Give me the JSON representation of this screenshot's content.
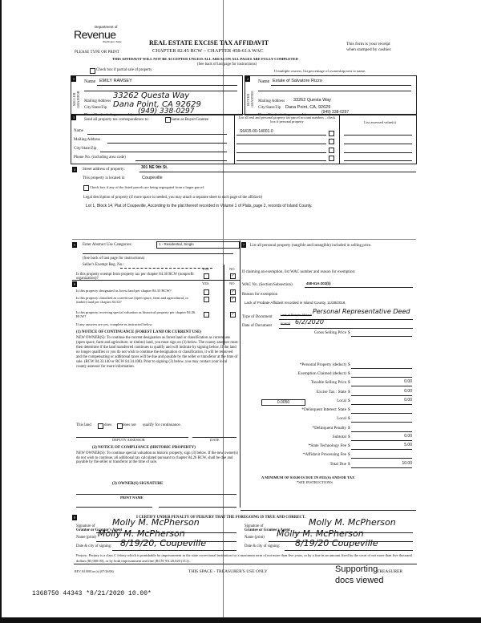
{
  "header": {
    "logo_top": "Department of",
    "logo_main": "Revenue",
    "logo_sub": "Washington State",
    "type_note": "PLEASE TYPE OR PRINT",
    "title": "REAL ESTATE EXCISE TAX AFFIDAVIT",
    "chapter": "CHAPTER 82.45 RCW – CHAPTER 458-61A WAC",
    "receipt_line1": "This form is your receipt",
    "receipt_line2": "when stamped by cashier.",
    "warning": "THIS AFFIDAVIT WILL NOT BE ACCEPTED UNLESS ALL AREAS ON ALL PAGES ARE FULLY COMPLETED",
    "see_back": "(See back of last page for instructions)",
    "partial_sale": "Check box if partial sale of property",
    "multiple_owners": "If multiple owners, list percentage of ownership next to name."
  },
  "seller": {
    "section": "1",
    "side_label": "SELLER GRANTOR",
    "name_label": "Name",
    "name": "EMILY RAMSEY",
    "address_label": "Mailing Address",
    "address": "33262 Questa Way",
    "city_label": "City/State/Zip",
    "city": "Dana Point, CA 92629",
    "phone_label": "Phone No. (including area code)",
    "phone": "(949) 338-0297"
  },
  "buyer": {
    "section": "2",
    "side_label": "BUYER GRANTEE",
    "name_label": "Name",
    "name": "Estate of Salvatore Rizzo",
    "address_label": "Mailing Address",
    "address": "33262 Questa Way",
    "city_label": "City/State/Zip",
    "city": "Dana Point, CA, 92629",
    "phone_label": "Phone No. (including area code)",
    "phone": "(949) 338-0297"
  },
  "correspondence": {
    "section": "3",
    "label": "Send all property tax correspondence to:",
    "same_as": "Same as Buyer/Grantee",
    "name_label": "Name",
    "address_label": "Mailing Address",
    "city_label": "City/State/Zip",
    "phone_label": "Phone No. (including area code)",
    "parcel_header": "List all real and personal property tax parcel account numbers – check box if personal property",
    "assessed_header": "List assessed value(s)",
    "parcels": [
      "S6415-00-14001-0",
      "",
      "",
      ""
    ]
  },
  "property": {
    "section": "4",
    "street_label": "Street address of property:",
    "street": "301 NE 9th St.",
    "located_label": "This property is located in",
    "located": "Coupeville",
    "segregated": "Check box if any of the listed parcels are being segregated from a larger parcel.",
    "legal_label": "Legal description of property (if more space is needed, you may attach a separate sheet to each page of the affidavit)",
    "legal": "Lot 1, Block 14, Plat of Coupeville, According to the plat thereof recorded in Volume 1 of Plats, page 2, records of Island County."
  },
  "section5": {
    "section": "5",
    "label": "Enter Abstract Use Categories:",
    "category": "1 - Residential, Single",
    "see_back": "(See back of last page for instructions)",
    "seller_exempt": "Seller's Exempt Reg. No.:",
    "yes": "YES",
    "no": "NO",
    "q_exempt": "Is this property exempt from property tax per chapter 84.36 RCW (nonprofit organization)?",
    "q_exempt_answer": "NO"
  },
  "section6": {
    "section": "6",
    "yes": "YES",
    "no": "NO",
    "questions": [
      {
        "text": "Is this property designated as forest land per chapter 84.33 RCW?",
        "answer": "NO"
      },
      {
        "text": "Is this property classified as current use (open space, farm and agricultural, or timber) land per chapter 84.34?",
        "answer": "NO"
      },
      {
        "text": "Is this property receiving special valuation as historical property per chapter 84.26 RCW?",
        "answer": "NO"
      }
    ],
    "if_yes": "If any answers are yes, complete as instructed below.",
    "notice1_title": "(1) NOTICE OF CONTINUANCE (FOREST LAND OR CURRENT USE)",
    "notice1_text": "NEW OWNER(S): To continue the current designation as forest land or classification as current use (open space, farm and agriculture, or timber) land, you must sign on (3) below. The county assessor must then determine if the land transferred continues to qualify and will indicate by signing below. If the land no longer qualifies or you do not wish to continue the designation or classification, it will be removed and the compensating or additional taxes will be due and payable by the seller or transferor at the time of sale. (RCW 84.33.140 or RCW 84.34.108). Prior to signing (3) below, you may contact your local county assessor for more information.",
    "this_land": "This land",
    "does": "does",
    "does_not": "does not",
    "qualify": "qualify for continuance.",
    "deputy": "DEPUTY ASSESSOR",
    "date": "DATE",
    "notice2_title": "(2) NOTICE OF COMPLIANCE (HISTORIC PROPERTY)",
    "notice2_text": "NEW OWNER(S): To continue special valuation as historic property, sign (3) below. If the new owner(s) do not wish to continue, all additional tax calculated pursuant to chapter 84.26 RCW, shall be due and payable by the seller or transferor at the time of sale.",
    "owner_sig": "(3) OWNER(S) SIGNATURE",
    "print_name": "PRINT NAME"
  },
  "section7": {
    "section": "7",
    "personal_property": "List all personal property (tangible and intangible) included in selling price.",
    "claim_label": "If claiming an exemption, list WAC number and reason for exemption:",
    "wac_label": "WAC No. (Section/Subsection)",
    "wac": "458-61A-202(b)",
    "reason_label": "Reason for exemption",
    "reason": "Lack of Probate Affidavit recorded in Island County, 11/28/2018.",
    "doc_type_label": "Type of Document",
    "doc_type_struck": "Lack of Probate Affidavit",
    "doc_type": "Personal Representative Deed",
    "doc_date_label": "Date of Document",
    "doc_date_struck": "8/18/20",
    "doc_date": "6/2/2020",
    "fees": [
      {
        "label": "Gross Selling Price",
        "value": ""
      },
      {
        "label": "*Personal Property (deduct)",
        "value": ""
      },
      {
        "label": "Exemption Claimed (deduct)",
        "value": ""
      },
      {
        "label": "Taxable Selling Price",
        "value": "0.00"
      },
      {
        "label": "Excise Tax : State",
        "value": "0.00"
      },
      {
        "label": "Local",
        "value": "0.00"
      },
      {
        "label": "*Delinquent Interest: State",
        "value": ""
      },
      {
        "label": "Local",
        "value": ""
      },
      {
        "label": "*Delinquent Penalty",
        "value": ""
      },
      {
        "label": "Subtotal",
        "value": "0.00"
      },
      {
        "label": "*State Technology Fee",
        "value": "5.00"
      },
      {
        "label": "*Affidavit Processing Fee",
        "value": ""
      },
      {
        "label": "Total Due",
        "value": "10.00"
      }
    ],
    "currency": "$",
    "local_rate": "0.0050",
    "minimum": "A MINIMUM OF $10.00 IS DUE IN FEE(S) AND/OR TAX",
    "see_instructions": "*SEE INSTRUCTIONS"
  },
  "section8": {
    "section": "8",
    "certify": "I CERTIFY UNDER PENALTY OF PERJURY THAT THE FOREGOING IS TRUE AND CORRECT.",
    "grantor_sig_label1": "Signature of",
    "grantor_sig_label2": "Grantor or Grantor's Agent",
    "grantor_sig": "Molly M. McPherson",
    "grantor_name_label": "Name (print)",
    "grantor_name": "Molly M. McPherson",
    "grantor_date_label": "Date & city of signing:",
    "grantor_date": "8/19/20, Coupeville",
    "grantee_sig_label1": "Signature of",
    "grantee_sig_label2": "Grantee or Grantee's Agent",
    "grantee_sig": "Molly M. McPherson",
    "grantee_name_label": "Name (print)",
    "grantee_name": "Molly M. McPherson",
    "grantee_date_label": "Date & city of signing:",
    "grantee_date": "8/19/20 Coupeville",
    "perjury": "Perjury: Perjury is a class C felony which is punishable by imprisonment in the state correctional institution for a maximum term of not more than five years, or by a fine in an amount fixed by the court of not more than five thousand dollars ($5,000.00), or by both imprisonment and fine (RCW 9A.20.020 (1C))."
  },
  "footer": {
    "rev": "REV 84 0001ae (a) (07/26/06)",
    "treasurer_use": "THIS SPACE - TREASURER'S USE ONLY",
    "treasurer": "TREASURER",
    "stamp": "1368750 44343 *8/21/2020 10.00*",
    "note_line1": "Supporting",
    "note_line2": "docs viewed"
  }
}
